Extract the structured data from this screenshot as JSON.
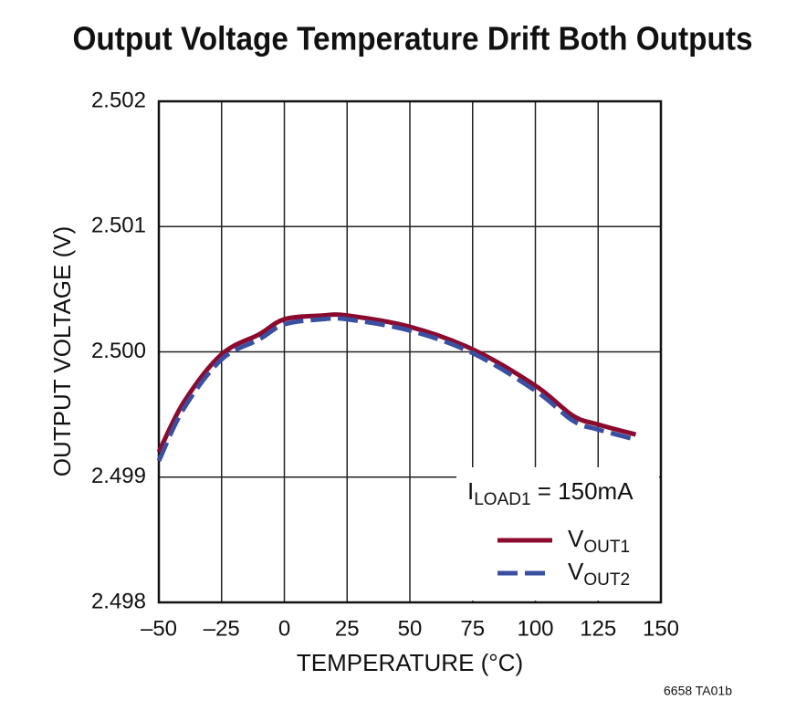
{
  "chart_data": {
    "type": "line",
    "title": "Output Voltage Temperature Drift Both Outputs",
    "x_label": "TEMPERATURE (°C)",
    "y_label": "OUTPUT VOLTAGE (V)",
    "annotation": "ILOAD1 = 150mA",
    "footnote": "6658 TA01b",
    "x": [
      -50,
      -40,
      -25,
      -10,
      0,
      15,
      25,
      50,
      75,
      100,
      115,
      125,
      140
    ],
    "series": [
      {
        "name": "VOUT1",
        "color": "#8b0a2e",
        "dashed": false,
        "values": [
          2.4992,
          2.4996,
          2.49998,
          2.50014,
          2.50026,
          2.50029,
          2.50029,
          2.5002,
          2.50002,
          2.49973,
          2.49949,
          2.49942,
          2.49934
        ]
      },
      {
        "name": "VOUT2",
        "color": "#3a4fa0",
        "dashed": true,
        "values": [
          2.49913,
          2.49955,
          2.49994,
          2.5001,
          2.50022,
          2.50026,
          2.50026,
          2.50017,
          2.49999,
          2.49969,
          2.49945,
          2.49938,
          2.4993
        ]
      }
    ],
    "xlim": [
      -50,
      150
    ],
    "ylim": [
      2.498,
      2.502
    ],
    "xticks": [
      {
        "value": -50,
        "label": "–50"
      },
      {
        "value": -25,
        "label": "–25"
      },
      0,
      25,
      50,
      75,
      100,
      125,
      150
    ],
    "yticks": [
      2.498,
      2.499,
      {
        "value": 2.5,
        "label": "2.500"
      },
      2.501,
      2.502
    ],
    "grid": true
  }
}
